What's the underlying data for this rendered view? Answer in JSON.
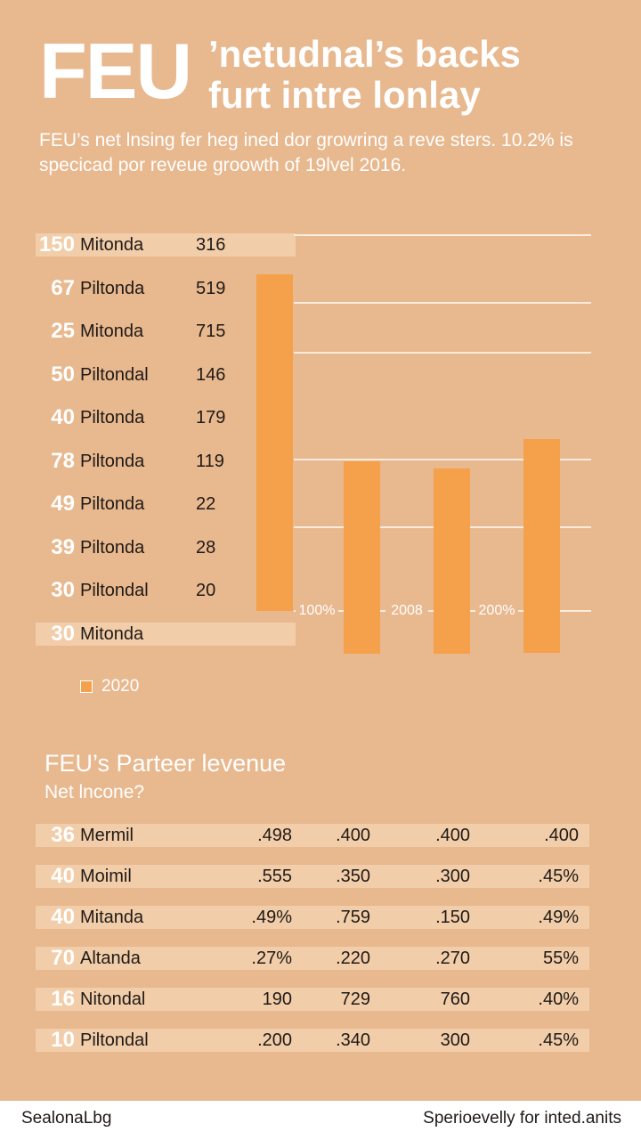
{
  "header": {
    "brand": "FEU",
    "headline": "’netudnal’s backs furt intre lonlay",
    "subtitle": "FEU’s net lnsing fer heg ined dor growring a reve sters. 10.2% is specicad por reveue groowth of 19lvel 2016."
  },
  "left_rows": [
    {
      "num": "150",
      "label": "Mitonda",
      "value": "316"
    },
    {
      "num": "67",
      "label": "Piltonda",
      "value": "519"
    },
    {
      "num": "25",
      "label": "Mitonda",
      "value": "715"
    },
    {
      "num": "50",
      "label": "Piltondal",
      "value": "146"
    },
    {
      "num": "40",
      "label": "Piltonda",
      "value": "179"
    },
    {
      "num": "78",
      "label": "Piltonda",
      "value": "119"
    },
    {
      "num": "49",
      "label": "Piltonda",
      "value": "22"
    },
    {
      "num": "39",
      "label": "Piltonda",
      "value": "28"
    },
    {
      "num": "30",
      "label": "Piltondal",
      "value": "20"
    },
    {
      "num": "30",
      "label": "Mitonda",
      "value": ""
    }
  ],
  "chart_data": {
    "type": "bar",
    "categories": [
      "",
      "",
      "",
      ""
    ],
    "values": [
      378,
      216,
      208,
      240
    ],
    "baseline_labels": [
      "100%",
      "2008",
      "200%"
    ],
    "colors": {
      "bar": "#f5a04a",
      "grid": "#fbecdd"
    },
    "legend": [
      "2020"
    ],
    "title": "",
    "xlabel": "",
    "ylabel": "",
    "grid": true
  },
  "legend": {
    "label": "2020"
  },
  "section": {
    "title": "FEU’s Parteer levenue",
    "subtitle": "Net lncone?"
  },
  "table_rows": [
    {
      "num": "36",
      "label": "Mermil",
      "cells": [
        ".498",
        ".400",
        ".400",
        ".400"
      ]
    },
    {
      "num": "40",
      "label": "Moimil",
      "cells": [
        ".555",
        ".350",
        ".300",
        ".45%"
      ]
    },
    {
      "num": "40",
      "label": "Mitanda",
      "cells": [
        ".49%",
        ".759",
        ".150",
        ".49%"
      ]
    },
    {
      "num": "70",
      "label": "Altanda",
      "cells": [
        ".27%",
        ".220",
        ".270",
        "55%"
      ]
    },
    {
      "num": "16",
      "label": "Nitondal",
      "cells": [
        "190",
        "729",
        "760",
        ".40%"
      ]
    },
    {
      "num": "10",
      "label": "Piltondal",
      "cells": [
        ".200",
        ".340",
        "300",
        ".45%"
      ]
    }
  ],
  "footer": {
    "left": "SealonaLbg",
    "right": "Sperioevelly for inted.anits"
  }
}
